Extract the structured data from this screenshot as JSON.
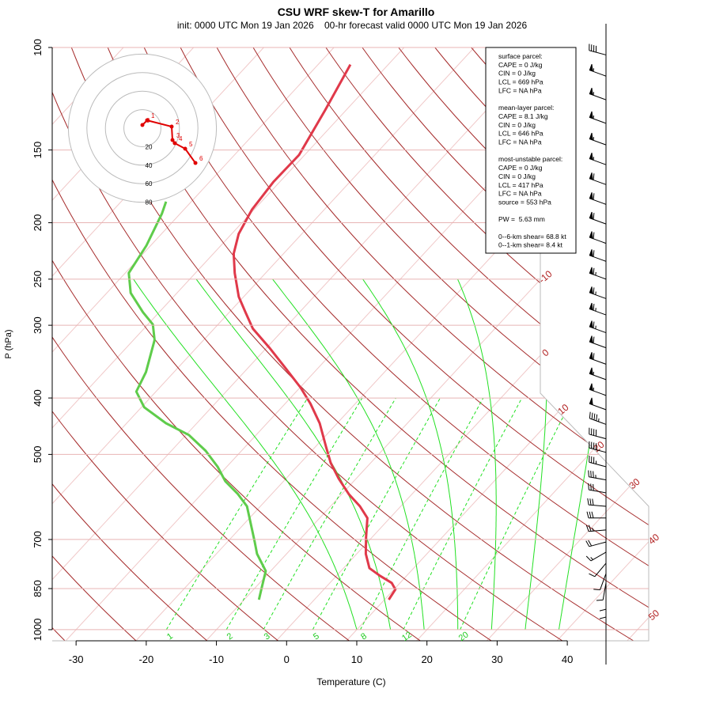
{
  "chart_data": {
    "type": "skewt",
    "title": "CSU WRF skew-T for Amarillo",
    "subtitle": "init: 0000 UTC Mon 19 Jan 2026    00-hr forecast valid 0000 UTC Mon 19 Jan 2026",
    "x_label": "Temperature (C)",
    "y_label": "P (hPa)",
    "xlim": [
      -33.4,
      51.6
    ],
    "xticks": [
      -30,
      -20,
      -10,
      0,
      10,
      20,
      30,
      40
    ],
    "ylim": [
      1045,
      100
    ],
    "yticks": [
      100,
      150,
      200,
      250,
      300,
      400,
      500,
      700,
      850,
      1000
    ],
    "log_y": true,
    "series": [
      {
        "color": "#e0394a",
        "pressure": [
          888,
          853,
          831,
          808,
          784,
          741,
          695,
          643,
          614,
          585,
          550,
          517,
          485,
          442,
          409,
          384,
          355,
          328,
          304,
          285,
          268,
          244,
          226,
          209,
          190,
          170,
          153,
          128,
          107
        ],
        "values": [
          10.6,
          10.2,
          8.8,
          6.2,
          3.7,
          1.3,
          -0.8,
          -3.2,
          -5.8,
          -9.0,
          -12.5,
          -15.7,
          -18.5,
          -22.5,
          -26.4,
          -29.9,
          -34.7,
          -39.6,
          -44.5,
          -47.7,
          -50.7,
          -54.4,
          -57.1,
          -59.0,
          -60.3,
          -60.9,
          -60.8,
          -63.0,
          -65.4
        ]
      },
      {
        "color": "#5fcc4b",
        "pressure": [
          888,
          853,
          793,
          741,
          707,
          614,
          585,
          556,
          525,
          493,
          463,
          442,
          415,
          390,
          361,
          318,
          299,
          285,
          264,
          244,
          219,
          193,
          184
        ],
        "values": [
          -7.9,
          -8.9,
          -10.7,
          -14.2,
          -16.1,
          -21.9,
          -24.8,
          -28.3,
          -31.3,
          -35.1,
          -39.6,
          -44.4,
          -49.6,
          -52.8,
          -54.0,
          -57.0,
          -59.3,
          -62.3,
          -66.6,
          -69.5,
          -70.6,
          -72.6,
          -73.6
        ]
      }
    ],
    "isotherm_labels": [
      -10,
      0,
      10,
      20,
      30,
      40,
      50
    ],
    "mixing_ratio_labels": [
      1,
      2,
      3,
      5,
      8,
      12,
      20
    ],
    "wind": {
      "pressure": [
        103,
        112,
        123,
        135,
        147,
        159,
        172,
        186,
        201,
        217,
        233,
        250,
        270,
        288,
        309,
        328,
        350,
        372,
        396,
        419,
        444,
        470,
        496,
        525,
        553,
        582,
        614,
        643,
        674,
        707,
        736,
        769,
        801,
        831,
        861,
        888
      ],
      "speed": [
        40,
        55,
        55,
        55,
        55,
        55,
        60,
        60,
        60,
        60,
        60,
        65,
        65,
        65,
        65,
        60,
        60,
        55,
        55,
        50,
        45,
        40,
        40,
        35,
        35,
        30,
        30,
        30,
        25,
        20,
        15,
        10,
        10,
        10,
        10,
        10
      ],
      "direction": [
        285,
        290,
        290,
        290,
        290,
        290,
        290,
        290,
        290,
        290,
        290,
        290,
        290,
        290,
        290,
        290,
        290,
        290,
        290,
        290,
        290,
        285,
        285,
        285,
        280,
        280,
        275,
        270,
        265,
        255,
        240,
        220,
        200,
        190,
        180,
        180
      ]
    },
    "hodograph": {
      "color": "#e00000",
      "rings": [
        20,
        40,
        60,
        80
      ],
      "heights": [
        0,
        1,
        2,
        3,
        4,
        5,
        6
      ],
      "u": [
        0,
        5.1,
        31.6,
        32.5,
        35,
        46.2,
        57.3
      ],
      "v": [
        3.4,
        8.5,
        1.7,
        -12.8,
        -16.2,
        -22.2,
        -37.6
      ]
    },
    "info_box": [
      [
        "surface parcel:",
        "CAPE = 0 J/kg",
        "CIN = 0 J/kg",
        "LCL = 669 hPa",
        "LFC = NA hPa"
      ],
      [
        "mean-layer parcel:",
        "CAPE = 8.1 J/kg",
        "CIN = 0 J/kg",
        "LCL = 646 hPa",
        "LFC = NA hPa"
      ],
      [
        "most-unstable parcel:",
        "CAPE = 0 J/kg",
        "CIN = 0 J/kg",
        "LCL = 417 hPa",
        "LFC = NA hPa",
        "source = 553 hPa"
      ],
      [
        "PW =  5.63 mm"
      ],
      [
        "0--6-km shear= 68.8 kt",
        "0--1-km shear= 8.4 kt"
      ]
    ]
  }
}
